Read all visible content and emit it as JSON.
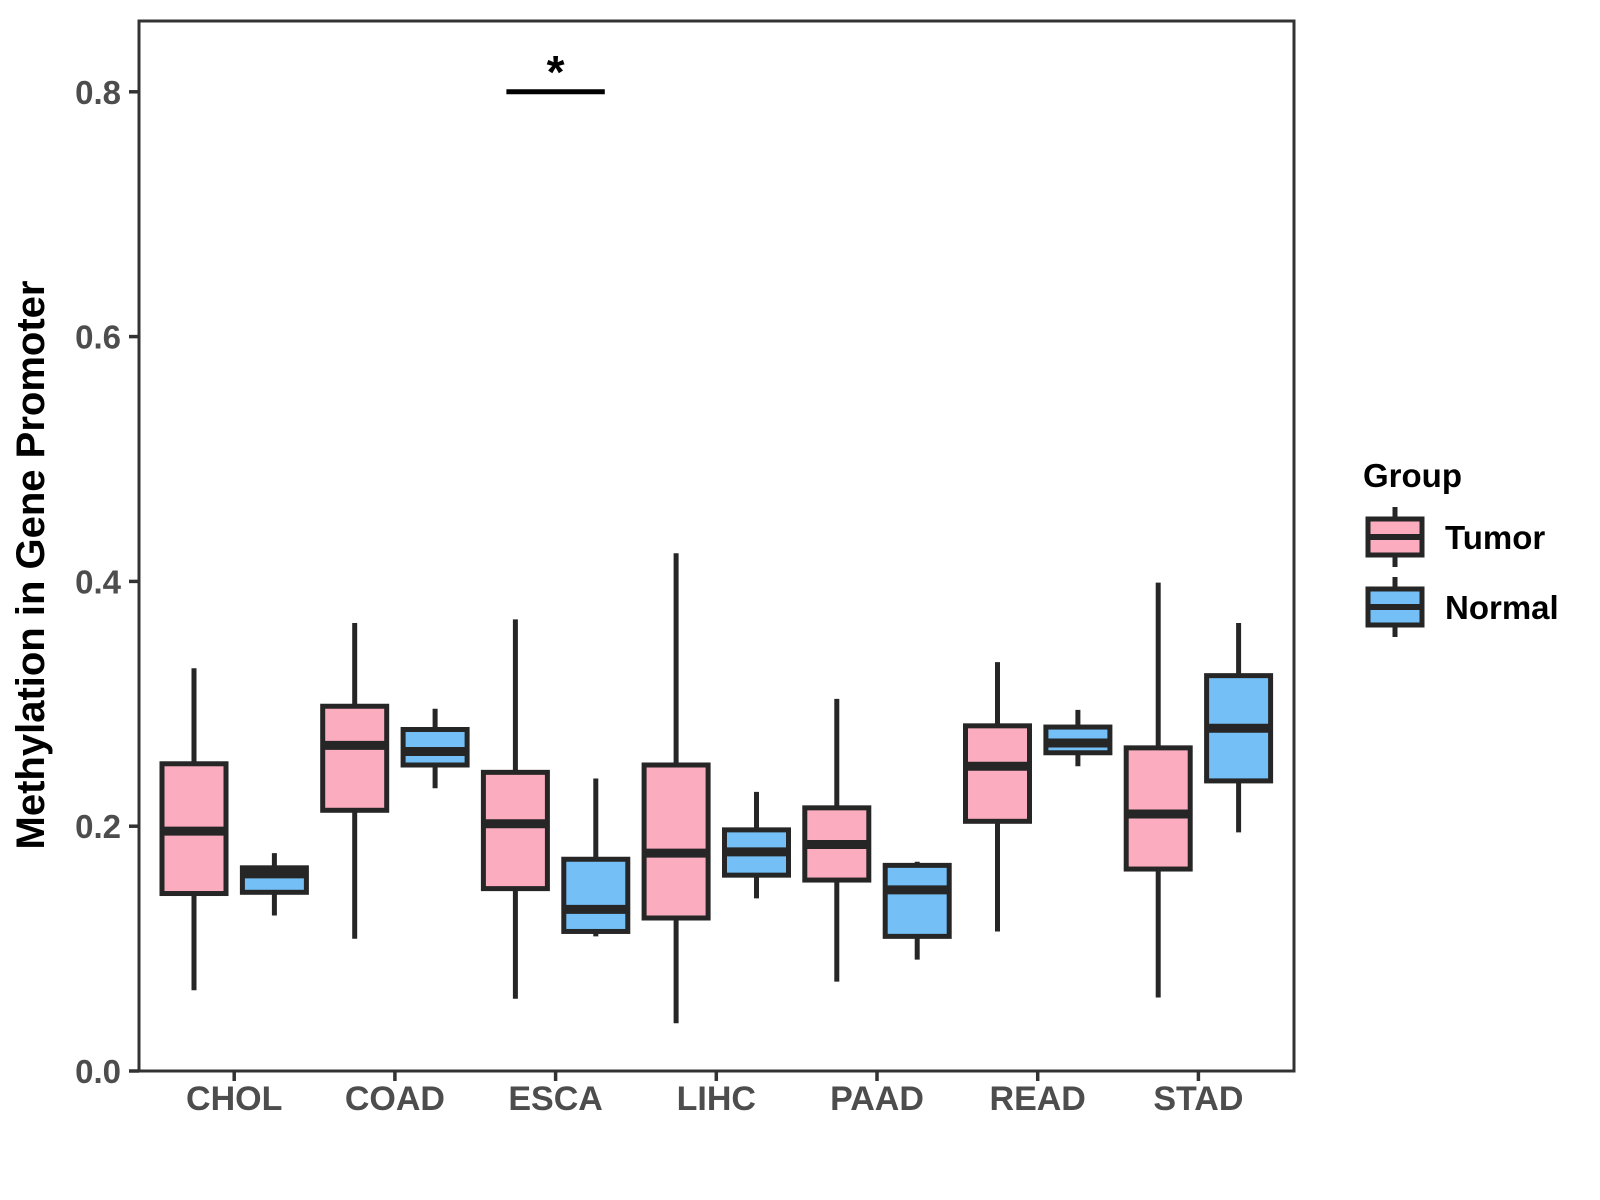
{
  "chart_data": {
    "type": "boxplot",
    "title": "",
    "xlabel": "",
    "ylabel": "Methylation in Gene Promoter",
    "ylim": [
      0,
      0.858
    ],
    "yticks": [
      0.0,
      0.2,
      0.4,
      0.6,
      0.8
    ],
    "ytick_labels": [
      "0.0",
      "0.2",
      "0.4",
      "0.6",
      "0.8"
    ],
    "categories": [
      "CHOL",
      "COAD",
      "ESCA",
      "LIHC",
      "PAAD",
      "READ",
      "STAD"
    ],
    "grid": "off",
    "legend": {
      "title": "Group",
      "position": "right",
      "entries": [
        {
          "label": "Tumor",
          "color": "#FBADBF"
        },
        {
          "label": "Normal",
          "color": "#73BFF6"
        }
      ]
    },
    "series": [
      {
        "name": "Tumor",
        "color": "#FBADBF",
        "boxes": [
          {
            "category": "CHOL",
            "min": 0.066,
            "q1": 0.145,
            "median": 0.196,
            "q3": 0.251,
            "max": 0.329
          },
          {
            "category": "COAD",
            "min": 0.108,
            "q1": 0.213,
            "median": 0.266,
            "q3": 0.298,
            "max": 0.366
          },
          {
            "category": "ESCA",
            "min": 0.059,
            "q1": 0.149,
            "median": 0.202,
            "q3": 0.244,
            "max": 0.369
          },
          {
            "category": "LIHC",
            "min": 0.039,
            "q1": 0.125,
            "median": 0.178,
            "q3": 0.25,
            "max": 0.423
          },
          {
            "category": "PAAD",
            "min": 0.073,
            "q1": 0.156,
            "median": 0.185,
            "q3": 0.215,
            "max": 0.304
          },
          {
            "category": "READ",
            "min": 0.114,
            "q1": 0.204,
            "median": 0.249,
            "q3": 0.282,
            "max": 0.334
          },
          {
            "category": "STAD",
            "min": 0.06,
            "q1": 0.165,
            "median": 0.21,
            "q3": 0.264,
            "max": 0.399
          }
        ]
      },
      {
        "name": "Normal",
        "color": "#73BFF6",
        "boxes": [
          {
            "category": "CHOL",
            "min": 0.127,
            "q1": 0.146,
            "median": 0.161,
            "q3": 0.166,
            "max": 0.178
          },
          {
            "category": "COAD",
            "min": 0.231,
            "q1": 0.25,
            "median": 0.261,
            "q3": 0.279,
            "max": 0.296
          },
          {
            "category": "ESCA",
            "min": 0.11,
            "q1": 0.114,
            "median": 0.132,
            "q3": 0.173,
            "max": 0.239
          },
          {
            "category": "LIHC",
            "min": 0.141,
            "q1": 0.16,
            "median": 0.179,
            "q3": 0.197,
            "max": 0.228
          },
          {
            "category": "PAAD",
            "min": 0.091,
            "q1": 0.11,
            "median": 0.148,
            "q3": 0.168,
            "max": 0.171
          },
          {
            "category": "READ",
            "min": 0.249,
            "q1": 0.26,
            "median": 0.268,
            "q3": 0.281,
            "max": 0.295
          },
          {
            "category": "STAD",
            "min": 0.195,
            "q1": 0.237,
            "median": 0.28,
            "q3": 0.323,
            "max": 0.366
          }
        ]
      }
    ],
    "annotations": [
      {
        "type": "significance",
        "label": "*",
        "category": "ESCA",
        "between": [
          "Tumor",
          "Normal"
        ],
        "bar_y": 0.8
      }
    ]
  },
  "style_colors": {
    "box_stroke": "#262626",
    "axis_stroke": "#333333",
    "tick_label": "#4d4d4d",
    "title_text": "#000000",
    "background": "#ffffff"
  }
}
